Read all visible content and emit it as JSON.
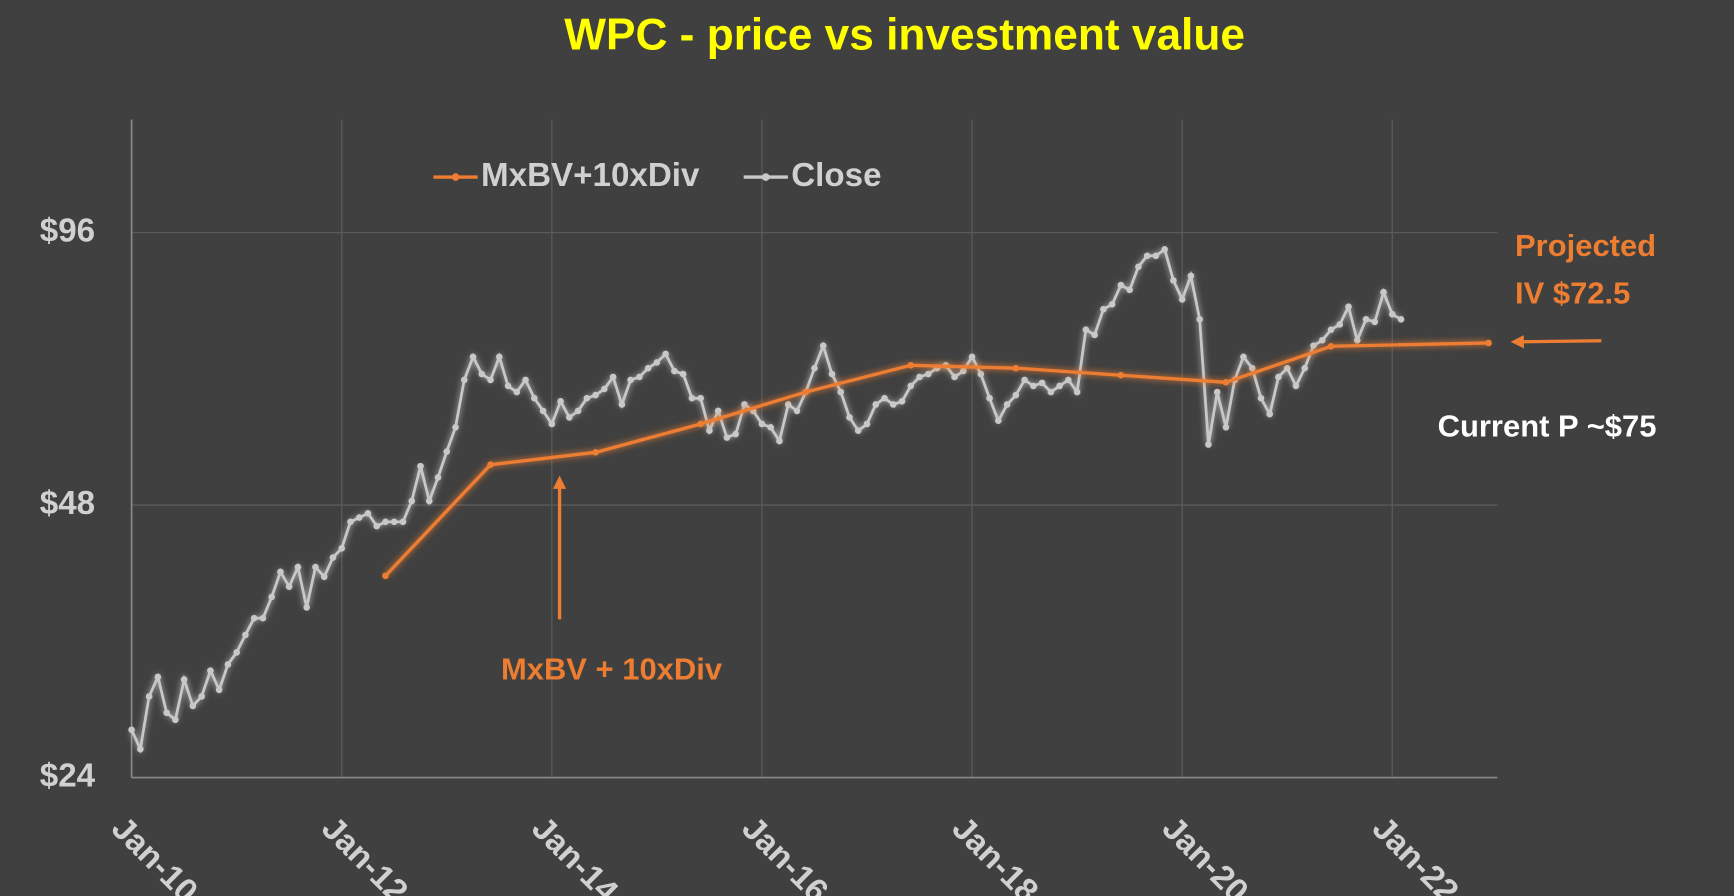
{
  "chart_data": {
    "type": "line",
    "title": "WPC - price vs investment value",
    "ylog": true,
    "grid": true,
    "legend": "top",
    "xlim": [
      "2010-01",
      "2023-01"
    ],
    "xticks": [
      {
        "value": "2010-01",
        "label": "Jan-10"
      },
      {
        "value": "2012-01",
        "label": "Jan-12"
      },
      {
        "value": "2014-01",
        "label": "Jan-14"
      },
      {
        "value": "2016-01",
        "label": "Jan-16"
      },
      {
        "value": "2018-01",
        "label": "Jan-18"
      },
      {
        "value": "2020-01",
        "label": "Jan-20"
      },
      {
        "value": "2022-01",
        "label": "Jan-22"
      }
    ],
    "ylim": [
      24,
      128
    ],
    "yticks": [
      {
        "value": 24,
        "label": "$24"
      },
      {
        "value": 48,
        "label": "$48"
      },
      {
        "value": 96,
        "label": "$96"
      }
    ],
    "annotations": [
      "Projected",
      "IV $72.5",
      "Current P ~$75",
      "MxBV + 10xDiv"
    ],
    "series": [
      {
        "name": "MxBV+10xDiv",
        "color": "#ed7d31",
        "x": [
          "2012-06",
          "2013-06",
          "2014-06",
          "2015-06",
          "2016-06",
          "2017-06",
          "2018-06",
          "2019-06",
          "2020-06",
          "2021-06",
          "2022-12"
        ],
        "values": [
          40.1,
          53.2,
          54.9,
          59.0,
          64.0,
          68.5,
          68.0,
          66.8,
          65.6,
          71.9,
          72.5
        ]
      },
      {
        "name": "Close",
        "color": "#c8c8c8",
        "x": [
          "2010-01",
          "2010-02",
          "2010-03",
          "2010-04",
          "2010-05",
          "2010-06",
          "2010-07",
          "2010-08",
          "2010-09",
          "2010-10",
          "2010-11",
          "2010-12",
          "2011-01",
          "2011-02",
          "2011-03",
          "2011-04",
          "2011-05",
          "2011-06",
          "2011-07",
          "2011-08",
          "2011-09",
          "2011-10",
          "2011-11",
          "2011-12",
          "2012-01",
          "2012-02",
          "2012-03",
          "2012-04",
          "2012-05",
          "2012-06",
          "2012-07",
          "2012-08",
          "2012-09",
          "2012-10",
          "2012-11",
          "2012-12",
          "2013-01",
          "2013-02",
          "2013-03",
          "2013-04",
          "2013-05",
          "2013-06",
          "2013-07",
          "2013-08",
          "2013-09",
          "2013-10",
          "2013-11",
          "2013-12",
          "2014-01",
          "2014-02",
          "2014-03",
          "2014-04",
          "2014-05",
          "2014-06",
          "2014-07",
          "2014-08",
          "2014-09",
          "2014-10",
          "2014-11",
          "2014-12",
          "2015-01",
          "2015-02",
          "2015-03",
          "2015-04",
          "2015-05",
          "2015-06",
          "2015-07",
          "2015-08",
          "2015-09",
          "2015-10",
          "2015-11",
          "2015-12",
          "2016-01",
          "2016-02",
          "2016-03",
          "2016-04",
          "2016-05",
          "2016-06",
          "2016-07",
          "2016-08",
          "2016-09",
          "2016-10",
          "2016-11",
          "2016-12",
          "2017-01",
          "2017-02",
          "2017-03",
          "2017-04",
          "2017-05",
          "2017-06",
          "2017-07",
          "2017-08",
          "2017-09",
          "2017-10",
          "2017-11",
          "2017-12",
          "2018-01",
          "2018-02",
          "2018-03",
          "2018-04",
          "2018-05",
          "2018-06",
          "2018-07",
          "2018-08",
          "2018-09",
          "2018-10",
          "2018-11",
          "2018-12",
          "2019-01",
          "2019-02",
          "2019-03",
          "2019-04",
          "2019-05",
          "2019-06",
          "2019-07",
          "2019-08",
          "2019-09",
          "2019-10",
          "2019-11",
          "2019-12",
          "2020-01",
          "2020-02",
          "2020-03",
          "2020-04",
          "2020-05",
          "2020-06",
          "2020-07",
          "2020-08",
          "2020-09",
          "2020-10",
          "2020-11",
          "2020-12",
          "2021-01",
          "2021-02",
          "2021-03",
          "2021-04",
          "2021-05",
          "2021-06",
          "2021-07",
          "2021-08",
          "2021-09",
          "2021-10",
          "2021-11",
          "2021-12",
          "2022-01",
          "2022-02"
        ],
        "values": [
          27.1,
          25.8,
          29.5,
          31,
          28.3,
          27.8,
          30.8,
          28.8,
          29.5,
          31.5,
          30,
          32,
          33,
          34.5,
          36,
          36,
          38,
          40.5,
          39,
          41,
          37,
          41,
          40,
          42,
          43,
          46,
          46.5,
          47,
          45.5,
          46,
          46,
          46,
          48.5,
          53,
          48.5,
          51.5,
          55,
          58.5,
          66,
          70,
          67,
          66,
          70,
          65,
          64,
          66,
          63,
          61,
          59,
          62.5,
          60,
          61,
          63,
          63.5,
          64.5,
          66.5,
          62,
          66,
          66.5,
          68,
          69,
          70.5,
          67.5,
          67,
          63,
          63,
          58,
          61,
          57,
          57.5,
          62,
          61,
          59,
          58.5,
          56.5,
          62,
          61,
          64,
          68,
          72,
          67,
          64,
          60,
          58,
          59,
          62,
          63,
          62,
          62.5,
          65,
          66.5,
          67,
          68,
          68.5,
          66.5,
          67.5,
          70,
          67,
          63,
          59.5,
          62,
          63.5,
          66,
          65,
          65.5,
          64,
          65,
          66,
          64,
          75,
          74,
          79,
          80,
          84,
          83,
          88,
          90.5,
          90.5,
          92,
          85,
          81,
          86,
          77,
          56,
          64,
          58.5,
          66,
          70,
          68,
          63,
          60.5,
          66.5,
          68,
          65,
          68,
          72,
          73,
          75,
          76,
          79.5,
          73,
          77,
          76.5,
          82.5,
          78,
          77
        ]
      }
    ]
  }
}
